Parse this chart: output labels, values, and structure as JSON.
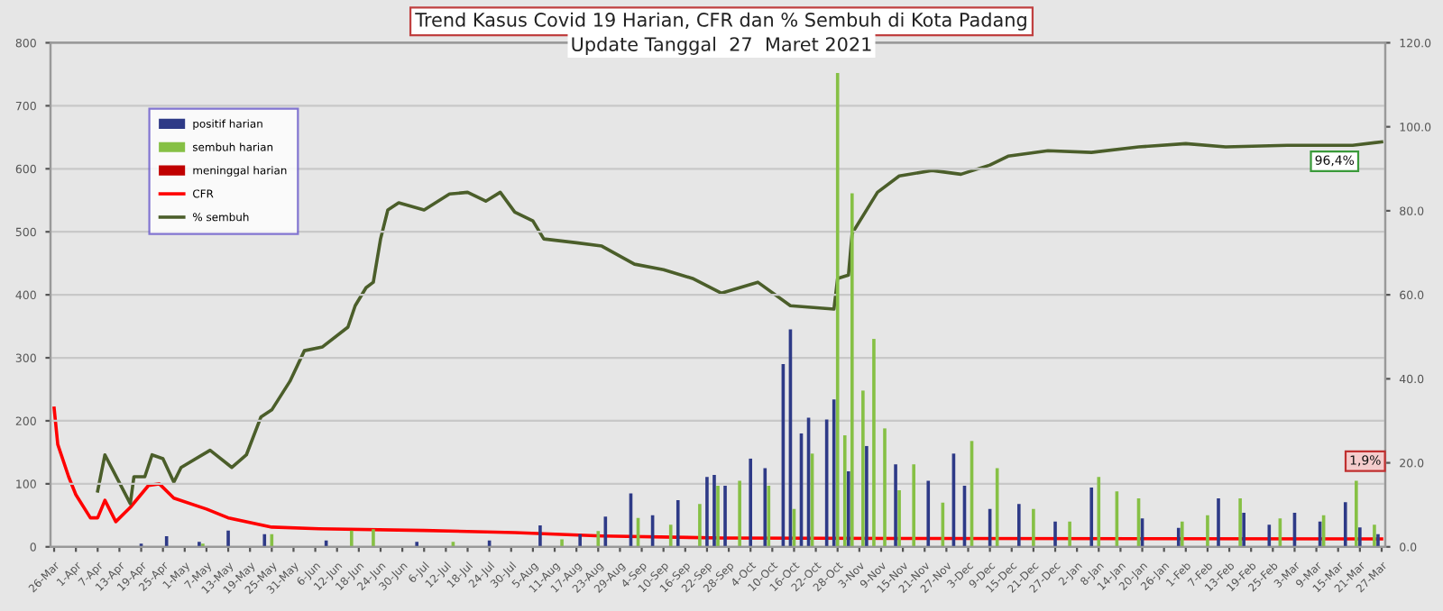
{
  "chart_data": {
    "type": "bar",
    "title": "Trend Kasus Covid 19 Harian, CFR dan % Sembuh di Kota Padang",
    "subtitle": "Update Tanggal  27  Maret 2021",
    "xlim": [
      "2020-03-25",
      "2021-03-28"
    ],
    "xticks": [
      {
        "value": "2020-03-26",
        "label": "26-Mar"
      },
      {
        "value": "2020-04-01",
        "label": "1-Apr"
      },
      {
        "value": "2020-04-07",
        "label": "7-Apr"
      },
      {
        "value": "2020-04-13",
        "label": "13-Apr"
      },
      {
        "value": "2020-04-19",
        "label": "19-Apr"
      },
      {
        "value": "2020-04-25",
        "label": "25-Apr"
      },
      {
        "value": "2020-05-01",
        "label": "1-May"
      },
      {
        "value": "2020-05-07",
        "label": "7-May"
      },
      {
        "value": "2020-05-13",
        "label": "13-May"
      },
      {
        "value": "2020-05-19",
        "label": "19-May"
      },
      {
        "value": "2020-05-25",
        "label": "25-May"
      },
      {
        "value": "2020-05-31",
        "label": "31-May"
      },
      {
        "value": "2020-06-06",
        "label": "6-Jun"
      },
      {
        "value": "2020-06-12",
        "label": "12-Jun"
      },
      {
        "value": "2020-06-18",
        "label": "18-Jun"
      },
      {
        "value": "2020-06-24",
        "label": "24-Jun"
      },
      {
        "value": "2020-06-30",
        "label": "30-Jun"
      },
      {
        "value": "2020-07-06",
        "label": "6-Jul"
      },
      {
        "value": "2020-07-12",
        "label": "12-Jul"
      },
      {
        "value": "2020-07-18",
        "label": "18-Jul"
      },
      {
        "value": "2020-07-24",
        "label": "24-Jul"
      },
      {
        "value": "2020-07-30",
        "label": "30-Jul"
      },
      {
        "value": "2020-08-05",
        "label": "5-Aug"
      },
      {
        "value": "2020-08-11",
        "label": "11-Aug"
      },
      {
        "value": "2020-08-17",
        "label": "17-Aug"
      },
      {
        "value": "2020-08-23",
        "label": "23-Aug"
      },
      {
        "value": "2020-08-29",
        "label": "29-Aug"
      },
      {
        "value": "2020-09-04",
        "label": "4-Sep"
      },
      {
        "value": "2020-09-10",
        "label": "10-Sep"
      },
      {
        "value": "2020-09-16",
        "label": "16-Sep"
      },
      {
        "value": "2020-09-22",
        "label": "22-Sep"
      },
      {
        "value": "2020-09-28",
        "label": "28-Sep"
      },
      {
        "value": "2020-10-04",
        "label": "4-Oct"
      },
      {
        "value": "2020-10-10",
        "label": "10-Oct"
      },
      {
        "value": "2020-10-16",
        "label": "16-Oct"
      },
      {
        "value": "2020-10-22",
        "label": "22-Oct"
      },
      {
        "value": "2020-10-28",
        "label": "28-Oct"
      },
      {
        "value": "2020-11-03",
        "label": "3-Nov"
      },
      {
        "value": "2020-11-09",
        "label": "9-Nov"
      },
      {
        "value": "2020-11-15",
        "label": "15-Nov"
      },
      {
        "value": "2020-11-21",
        "label": "21-Nov"
      },
      {
        "value": "2020-11-27",
        "label": "27-Nov"
      },
      {
        "value": "2020-12-03",
        "label": "3-Dec"
      },
      {
        "value": "2020-12-09",
        "label": "9-Dec"
      },
      {
        "value": "2020-12-15",
        "label": "15-Dec"
      },
      {
        "value": "2020-12-21",
        "label": "21-Dec"
      },
      {
        "value": "2020-12-27",
        "label": "27-Dec"
      },
      {
        "value": "2021-01-02",
        "label": "2-Jan"
      },
      {
        "value": "2021-01-08",
        "label": "8-Jan"
      },
      {
        "value": "2021-01-14",
        "label": "14-Jan"
      },
      {
        "value": "2021-01-20",
        "label": "20-Jan"
      },
      {
        "value": "2021-01-26",
        "label": "26-Jan"
      },
      {
        "value": "2021-02-01",
        "label": "1-Feb"
      },
      {
        "value": "2021-02-07",
        "label": "7-Feb"
      },
      {
        "value": "2021-02-13",
        "label": "13-Feb"
      },
      {
        "value": "2021-02-19",
        "label": "19-Feb"
      },
      {
        "value": "2021-02-25",
        "label": "25-Feb"
      },
      {
        "value": "2021-03-03",
        "label": "3-Mar"
      },
      {
        "value": "2021-03-09",
        "label": "9-Mar"
      },
      {
        "value": "2021-03-15",
        "label": "15-Mar"
      },
      {
        "value": "2021-03-21",
        "label": "21-Mar"
      },
      {
        "value": "2021-03-27",
        "label": "27-Mar"
      }
    ],
    "ylim": [
      0,
      800
    ],
    "yticks": [
      0,
      100,
      200,
      300,
      400,
      500,
      600,
      700,
      800
    ],
    "y2lim": [
      0,
      120
    ],
    "y2ticks": [
      {
        "value": 0,
        "label": "0.0"
      },
      {
        "value": 20,
        "label": "20.0"
      },
      {
        "value": 40,
        "label": "40.0"
      },
      {
        "value": 60,
        "label": "60.0"
      },
      {
        "value": 80,
        "label": "80.0"
      },
      {
        "value": 100,
        "label": "100.0"
      },
      {
        "value": 120,
        "label": "120.0"
      }
    ],
    "grid": "y",
    "legend": "top left",
    "series": [
      {
        "name": "positif harian",
        "color": "#2e3a87",
        "x": [
          "2020-04-19",
          "2020-04-26",
          "2020-05-05",
          "2020-05-13",
          "2020-05-23",
          "2020-06-09",
          "2020-07-04",
          "2020-07-24",
          "2020-08-07",
          "2020-08-18",
          "2020-08-25",
          "2020-09-01",
          "2020-09-07",
          "2020-09-14",
          "2020-09-22",
          "2020-09-24",
          "2020-09-27",
          "2020-10-04",
          "2020-10-08",
          "2020-10-13",
          "2020-10-15",
          "2020-10-18",
          "2020-10-20",
          "2020-10-25",
          "2020-10-27",
          "2020-10-31",
          "2020-11-05",
          "2020-11-13",
          "2020-11-22",
          "2020-11-29",
          "2020-12-02",
          "2020-12-09",
          "2020-12-17",
          "2020-12-27",
          "2021-01-06",
          "2021-01-20",
          "2021-01-30",
          "2021-02-10",
          "2021-02-17",
          "2021-02-24",
          "2021-03-03",
          "2021-03-10",
          "2021-03-17",
          "2021-03-21",
          "2021-03-26"
        ],
        "values": [
          5,
          17,
          8,
          26,
          20,
          10,
          8,
          10,
          34,
          20,
          48,
          85,
          50,
          74,
          111,
          114,
          97,
          140,
          125,
          290,
          345,
          180,
          205,
          202,
          234,
          120,
          160,
          131,
          105,
          148,
          97,
          60,
          68,
          40,
          94,
          45,
          30,
          77,
          54,
          35,
          54,
          40,
          71,
          31,
          20
        ]
      },
      {
        "name": "sembuh harian",
        "color": "#86c045",
        "x": [
          "2020-05-06",
          "2020-05-25",
          "2020-06-16",
          "2020-06-22",
          "2020-07-14",
          "2020-08-13",
          "2020-08-23",
          "2020-09-03",
          "2020-09-12",
          "2020-09-20",
          "2020-09-25",
          "2020-10-01",
          "2020-10-09",
          "2020-10-16",
          "2020-10-21",
          "2020-10-28",
          "2020-10-30",
          "2020-11-01",
          "2020-11-04",
          "2020-11-07",
          "2020-11-10",
          "2020-11-14",
          "2020-11-18",
          "2020-11-26",
          "2020-12-04",
          "2020-12-11",
          "2020-12-21",
          "2020-12-31",
          "2021-01-08",
          "2021-01-13",
          "2021-01-19",
          "2021-01-31",
          "2021-02-07",
          "2021-02-16",
          "2021-02-27",
          "2021-03-11",
          "2021-03-20",
          "2021-03-25"
        ],
        "values": [
          5,
          20,
          26,
          28,
          8,
          12,
          25,
          46,
          35,
          68,
          97,
          105,
          97,
          60,
          148,
          752,
          177,
          561,
          248,
          330,
          188,
          90,
          131,
          70,
          168,
          125,
          60,
          40,
          111,
          88,
          77,
          40,
          50,
          77,
          45,
          50,
          105,
          35
        ]
      },
      {
        "name": "meninggal harian",
        "color": "#c00000"
      },
      {
        "name": "CFR",
        "type": "line",
        "axis": "y2",
        "color": "#ff0000",
        "x": [
          "2020-03-26",
          "2020-03-27",
          "2020-03-30",
          "2020-04-01",
          "2020-04-05",
          "2020-04-07",
          "2020-04-09",
          "2020-04-12",
          "2020-04-16",
          "2020-04-21",
          "2020-04-24",
          "2020-04-28",
          "2020-05-07",
          "2020-05-13",
          "2020-05-25",
          "2020-06-07",
          "2020-07-06",
          "2020-07-31",
          "2020-08-24",
          "2020-09-26",
          "2020-11-14",
          "2021-03-27"
        ],
        "values": [
          33,
          24.4,
          16.7,
          12.4,
          6.9,
          6.9,
          11.1,
          6,
          9.4,
          14.6,
          15,
          11.6,
          9,
          6.9,
          4.7,
          4.3,
          3.9,
          3.4,
          2.6,
          2.1,
          2,
          1.9
        ]
      },
      {
        "name": "% sembuh",
        "type": "line",
        "axis": "y2",
        "color": "#4b5e2a",
        "x": [
          "2020-04-07",
          "2020-04-09",
          "2020-04-16",
          "2020-04-17",
          "2020-04-20",
          "2020-04-22",
          "2020-04-25",
          "2020-04-28",
          "2020-04-30",
          "2020-05-08",
          "2020-05-14",
          "2020-05-18",
          "2020-05-22",
          "2020-05-25",
          "2020-05-30",
          "2020-06-03",
          "2020-06-08",
          "2020-06-15",
          "2020-06-17",
          "2020-06-20",
          "2020-06-22",
          "2020-06-24",
          "2020-06-26",
          "2020-06-29",
          "2020-07-06",
          "2020-07-13",
          "2020-07-18",
          "2020-07-23",
          "2020-07-27",
          "2020-07-31",
          "2020-08-05",
          "2020-08-08",
          "2020-08-17",
          "2020-08-24",
          "2020-09-02",
          "2020-09-10",
          "2020-09-18",
          "2020-09-26",
          "2020-10-06",
          "2020-10-15",
          "2020-10-27",
          "2020-10-28",
          "2020-10-31",
          "2020-11-01",
          "2020-11-08",
          "2020-11-14",
          "2020-11-23",
          "2020-12-01",
          "2020-12-09",
          "2020-12-14",
          "2020-12-25",
          "2021-01-06",
          "2021-01-19",
          "2021-02-01",
          "2021-02-12",
          "2021-03-01",
          "2021-03-19",
          "2021-03-27"
        ],
        "values": [
          13.3,
          21.9,
          10.3,
          16.7,
          16.7,
          21.9,
          21,
          15.4,
          18.9,
          23,
          18.9,
          21.9,
          30.9,
          32.6,
          39.4,
          46.7,
          47.6,
          52.3,
          57.4,
          61.7,
          63,
          73.3,
          80.2,
          81.9,
          80.2,
          84,
          84.4,
          82.3,
          84.4,
          79.7,
          77.6,
          73.3,
          72.4,
          71.6,
          67.3,
          66,
          63.9,
          60.4,
          63,
          57.4,
          56.6,
          63.9,
          64.7,
          74.6,
          84.4,
          88.3,
          89.6,
          88.7,
          90.9,
          93,
          94.3,
          93.9,
          95.2,
          96,
          95.2,
          95.6,
          95.6,
          96.4
        ]
      }
    ],
    "annotations": [
      "96,4%",
      "1,9%"
    ]
  }
}
